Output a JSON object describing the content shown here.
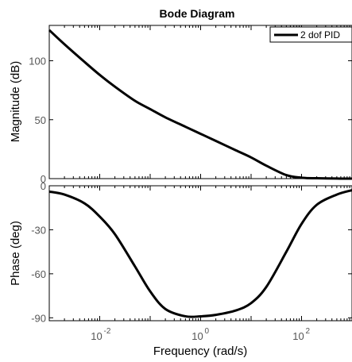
{
  "chart_data": {
    "type": "line",
    "title": "Bode Diagram",
    "xlabel": "Frequency  (rad/s)",
    "xscale": "log",
    "xlim": [
      0.001,
      1000
    ],
    "x_ticks": [
      {
        "base": "10",
        "exp": "-2",
        "value": 0.01
      },
      {
        "base": "10",
        "exp": "0",
        "value": 1
      },
      {
        "base": "10",
        "exp": "2",
        "value": 100
      }
    ],
    "legend": {
      "entries": [
        "2 dof PID"
      ],
      "placement": "top-right"
    },
    "series_color": "#000000",
    "panels": [
      {
        "ylabel": "Magnitude (dB)",
        "ylim": [
          0,
          130
        ],
        "yticks": [
          0,
          50,
          100
        ],
        "x": [
          0.001,
          0.002,
          0.005,
          0.01,
          0.02,
          0.05,
          0.1,
          0.2,
          0.5,
          1,
          2,
          5,
          10,
          20,
          50,
          100,
          200,
          500,
          1000
        ],
        "y": [
          126,
          114,
          99,
          88,
          78,
          66,
          59,
          52,
          44,
          38,
          32,
          24,
          18,
          11,
          3,
          0.8,
          0.3,
          0.05,
          0
        ]
      },
      {
        "ylabel": "Phase (deg)",
        "ylim": [
          -92,
          0
        ],
        "yticks": [
          0,
          -30,
          -60,
          -90
        ],
        "x": [
          0.001,
          0.002,
          0.005,
          0.01,
          0.02,
          0.05,
          0.1,
          0.2,
          0.5,
          1,
          2,
          5,
          10,
          20,
          50,
          100,
          200,
          500,
          1000
        ],
        "y": [
          -4,
          -6,
          -12,
          -21,
          -33,
          -55,
          -72,
          -84,
          -89,
          -89,
          -88,
          -85,
          -80,
          -69,
          -45,
          -26,
          -13,
          -6,
          -3
        ]
      }
    ]
  }
}
